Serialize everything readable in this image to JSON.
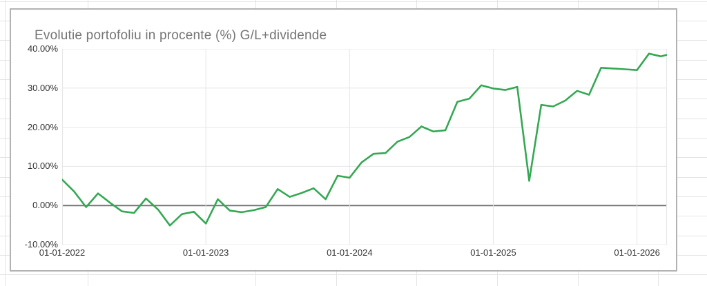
{
  "chart_data": {
    "type": "line",
    "title": "Evolutie portofoliu in procente (%) G/L+dividende",
    "y_tick_labels": [
      "40.00%",
      "30.00%",
      "20.00%",
      "10.00%",
      "0.00%",
      "-10.00%"
    ],
    "x_tick_labels": [
      "01-01-2022",
      "01-01-2023",
      "01-01-2024",
      "01-01-2025",
      "01-01-2026"
    ],
    "x_tick_month_offsets": [
      0,
      12,
      24,
      36,
      48
    ],
    "ylim": [
      -10,
      40
    ],
    "xlim_months": [
      0,
      50.5
    ],
    "grid": true,
    "legend": "none",
    "line_color": "#34a853",
    "grid_color": "#e6e6e6",
    "zero_line_color": "#757575",
    "series": [
      {
        "name": "G/L+dividende",
        "unit": "percent",
        "cadence": "monthly, month offsets from 01-2022",
        "points": [
          [
            0,
            6.6
          ],
          [
            1,
            3.6
          ],
          [
            2,
            -0.4
          ],
          [
            3,
            3.1
          ],
          [
            4,
            0.7
          ],
          [
            5,
            -1.5
          ],
          [
            6,
            -1.9
          ],
          [
            7,
            1.8
          ],
          [
            8,
            -1.0
          ],
          [
            9,
            -5.1
          ],
          [
            10,
            -2.2
          ],
          [
            11,
            -1.6
          ],
          [
            12,
            -4.6
          ],
          [
            13,
            1.6
          ],
          [
            14,
            -1.3
          ],
          [
            15,
            -1.7
          ],
          [
            16,
            -1.2
          ],
          [
            17,
            -0.4
          ],
          [
            18,
            4.2
          ],
          [
            19,
            2.2
          ],
          [
            20,
            3.2
          ],
          [
            21,
            4.4
          ],
          [
            22,
            1.6
          ],
          [
            23,
            7.6
          ],
          [
            24,
            7.1
          ],
          [
            25,
            11.0
          ],
          [
            26,
            13.2
          ],
          [
            27,
            13.4
          ],
          [
            28,
            16.3
          ],
          [
            29,
            17.5
          ],
          [
            30,
            20.2
          ],
          [
            31,
            18.9
          ],
          [
            32,
            19.2
          ],
          [
            33,
            26.5
          ],
          [
            34,
            27.3
          ],
          [
            35,
            30.7
          ],
          [
            36,
            29.9
          ],
          [
            37,
            29.5
          ],
          [
            38,
            30.3
          ],
          [
            39,
            6.3
          ],
          [
            40,
            25.7
          ],
          [
            41,
            25.3
          ],
          [
            42,
            26.8
          ],
          [
            43,
            29.3
          ],
          [
            44,
            28.3
          ],
          [
            45,
            35.2
          ],
          [
            46,
            35.0
          ],
          [
            47,
            34.8
          ],
          [
            48,
            34.6
          ],
          [
            49,
            38.8
          ],
          [
            50,
            38.1
          ],
          [
            50.45,
            38.45
          ]
        ]
      }
    ]
  }
}
